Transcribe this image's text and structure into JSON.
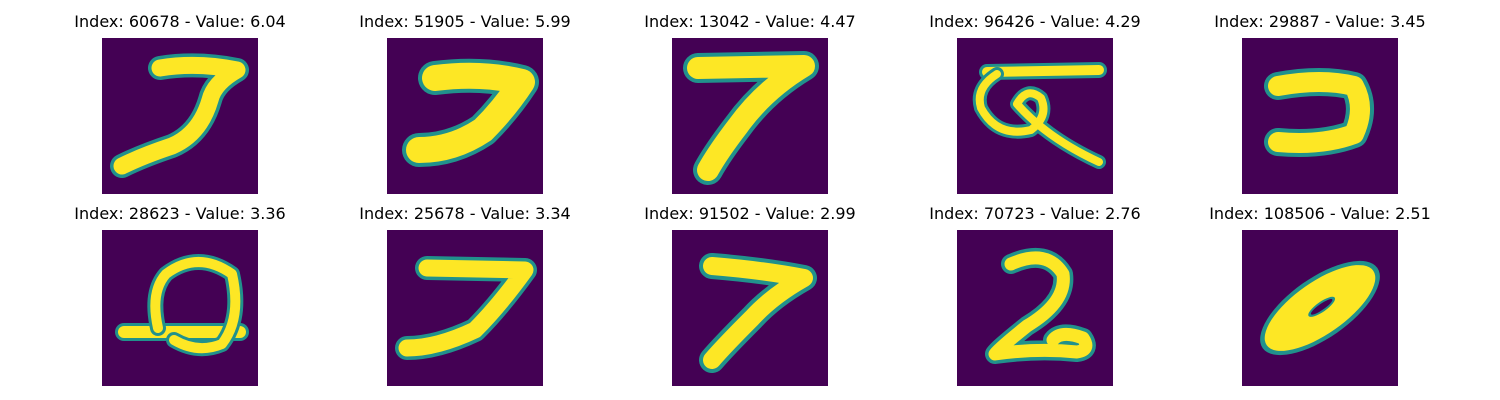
{
  "figure": {
    "colormap": {
      "background": "#440154",
      "mid": "#21918c",
      "foreground": "#fde725"
    },
    "panels": [
      {
        "title": "Index: 60678 - Value: 6.04",
        "digit_shape": "seven-curved"
      },
      {
        "title": "Index: 51905 - Value: 5.99",
        "digit_shape": "seven-thick"
      },
      {
        "title": "Index: 13042 - Value: 4.47",
        "digit_shape": "seven-slanted"
      },
      {
        "title": "Index: 96426 - Value: 4.29",
        "digit_shape": "symbol-looped"
      },
      {
        "title": "Index: 29887 - Value: 3.45",
        "digit_shape": "hook-reversed"
      },
      {
        "title": "Index: 28623 - Value: 3.36",
        "digit_shape": "loop-on-base"
      },
      {
        "title": "Index: 25678 - Value: 3.34",
        "digit_shape": "seven-plain"
      },
      {
        "title": "Index: 91502 - Value: 2.99",
        "digit_shape": "seven-tilted"
      },
      {
        "title": "Index: 70723 - Value: 2.76",
        "digit_shape": "two-looped"
      },
      {
        "title": "Index: 108506 - Value: 2.51",
        "digit_shape": "zero-slanted"
      }
    ]
  }
}
